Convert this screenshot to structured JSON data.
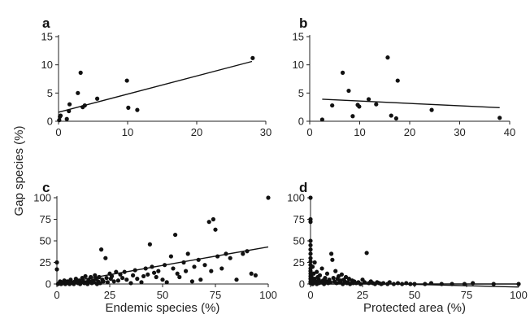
{
  "y_axis_title": "Gap species (%)",
  "chart_data": [
    {
      "panel": "a",
      "type": "scatter",
      "xlabel": "",
      "ylabel": "",
      "xlim": [
        0,
        30
      ],
      "ylim": [
        0,
        15
      ],
      "xticks": [
        0,
        10,
        20,
        30
      ],
      "yticks": [
        0,
        5,
        10,
        15
      ],
      "grid": false,
      "points": [
        [
          0.1,
          0.2
        ],
        [
          0.2,
          0.8
        ],
        [
          0.3,
          1.0
        ],
        [
          1.2,
          0.4
        ],
        [
          1.5,
          1.8
        ],
        [
          1.6,
          3.0
        ],
        [
          2.8,
          5.0
        ],
        [
          3.2,
          8.6
        ],
        [
          3.5,
          2.5
        ],
        [
          3.8,
          2.8
        ],
        [
          5.6,
          4.0
        ],
        [
          9.9,
          7.2
        ],
        [
          10.1,
          2.4
        ],
        [
          11.4,
          2.0
        ],
        [
          28.1,
          11.2
        ]
      ],
      "trend": [
        [
          0,
          1.6
        ],
        [
          28,
          10.6
        ]
      ]
    },
    {
      "panel": "b",
      "type": "scatter",
      "xlabel": "",
      "ylabel": "",
      "xlim": [
        0,
        40
      ],
      "ylim": [
        0,
        15
      ],
      "xticks": [
        0,
        10,
        20,
        30,
        40
      ],
      "yticks": [
        0,
        5,
        10,
        15
      ],
      "grid": false,
      "points": [
        [
          2.5,
          0.3
        ],
        [
          4.5,
          2.8
        ],
        [
          6.6,
          8.6
        ],
        [
          7.8,
          5.4
        ],
        [
          8.6,
          0.9
        ],
        [
          9.6,
          2.9
        ],
        [
          9.9,
          2.6
        ],
        [
          11.8,
          3.9
        ],
        [
          13.3,
          3.0
        ],
        [
          15.6,
          11.3
        ],
        [
          16.3,
          1.0
        ],
        [
          17.3,
          0.5
        ],
        [
          17.6,
          7.2
        ],
        [
          24.4,
          2.0
        ],
        [
          38.0,
          0.6
        ]
      ],
      "trend": [
        [
          2.5,
          3.9
        ],
        [
          38,
          2.4
        ]
      ]
    },
    {
      "panel": "c",
      "type": "scatter",
      "xlabel": "Endemic species (%)",
      "ylabel": "",
      "xlim": [
        0,
        100
      ],
      "ylim": [
        0,
        100
      ],
      "xticks": [
        0,
        25,
        50,
        75,
        100
      ],
      "yticks": [
        0,
        25,
        50,
        75,
        100
      ],
      "grid": false,
      "points": [
        [
          0,
          25
        ],
        [
          0,
          17
        ],
        [
          0.5,
          0
        ],
        [
          1,
          1
        ],
        [
          1.5,
          3
        ],
        [
          2,
          0
        ],
        [
          2.5,
          2
        ],
        [
          3,
          1
        ],
        [
          3.5,
          4
        ],
        [
          4,
          0
        ],
        [
          4.5,
          2
        ],
        [
          5,
          3
        ],
        [
          5.5,
          1
        ],
        [
          6,
          0
        ],
        [
          6.5,
          5
        ],
        [
          7,
          2
        ],
        [
          7.5,
          1
        ],
        [
          8,
          0
        ],
        [
          8.5,
          3
        ],
        [
          9,
          6
        ],
        [
          9.5,
          2
        ],
        [
          10,
          1
        ],
        [
          10.5,
          4
        ],
        [
          11,
          0
        ],
        [
          11.5,
          2
        ],
        [
          12,
          7
        ],
        [
          12.5,
          3
        ],
        [
          13,
          1
        ],
        [
          13.5,
          9
        ],
        [
          14,
          2
        ],
        [
          14.5,
          0
        ],
        [
          15,
          5
        ],
        [
          15.5,
          3
        ],
        [
          16,
          8
        ],
        [
          16.5,
          1
        ],
        [
          17,
          4
        ],
        [
          17.5,
          2
        ],
        [
          18,
          10
        ],
        [
          18.5,
          6
        ],
        [
          19,
          0
        ],
        [
          19.5,
          3
        ],
        [
          20,
          8
        ],
        [
          20.5,
          1
        ],
        [
          21,
          40
        ],
        [
          21.5,
          5
        ],
        [
          22,
          3
        ],
        [
          23,
          30
        ],
        [
          23.5,
          7
        ],
        [
          24,
          2
        ],
        [
          25,
          12
        ],
        [
          25.5,
          6
        ],
        [
          26,
          9
        ],
        [
          27,
          3
        ],
        [
          28,
          14
        ],
        [
          29,
          4
        ],
        [
          30,
          11
        ],
        [
          31,
          7
        ],
        [
          32,
          14
        ],
        [
          33,
          5
        ],
        [
          35,
          1
        ],
        [
          36,
          10
        ],
        [
          37,
          16
        ],
        [
          38,
          6
        ],
        [
          40,
          2
        ],
        [
          41,
          9
        ],
        [
          42,
          18
        ],
        [
          43,
          11
        ],
        [
          44,
          46
        ],
        [
          45,
          20
        ],
        [
          46,
          13
        ],
        [
          47,
          8
        ],
        [
          48,
          15
        ],
        [
          50,
          5
        ],
        [
          51,
          22
        ],
        [
          52,
          2
        ],
        [
          54,
          32
        ],
        [
          55,
          18
        ],
        [
          56,
          57
        ],
        [
          57,
          12
        ],
        [
          58,
          8
        ],
        [
          60,
          25
        ],
        [
          61,
          15
        ],
        [
          62,
          35
        ],
        [
          64,
          3
        ],
        [
          65,
          20
        ],
        [
          67,
          28
        ],
        [
          68,
          5
        ],
        [
          70,
          22
        ],
        [
          72,
          72
        ],
        [
          73,
          15
        ],
        [
          74,
          75
        ],
        [
          75,
          63
        ],
        [
          76,
          32
        ],
        [
          78,
          18
        ],
        [
          80,
          35
        ],
        [
          82,
          30
        ],
        [
          85,
          5
        ],
        [
          88,
          35
        ],
        [
          90,
          38
        ],
        [
          92,
          12
        ],
        [
          94,
          10
        ],
        [
          100,
          100
        ]
      ],
      "trend": [
        [
          0,
          0
        ],
        [
          100,
          43
        ]
      ]
    },
    {
      "panel": "d",
      "type": "scatter",
      "xlabel": "Protected area (%)",
      "ylabel": "",
      "xlim": [
        0,
        100
      ],
      "ylim": [
        0,
        100
      ],
      "xticks": [
        0,
        25,
        50,
        75,
        100
      ],
      "yticks": [
        0,
        25,
        50,
        75,
        100
      ],
      "grid": false,
      "points": [
        [
          0,
          100
        ],
        [
          0,
          75
        ],
        [
          0,
          72
        ],
        [
          0,
          50
        ],
        [
          0,
          45
        ],
        [
          0,
          40
        ],
        [
          0,
          35
        ],
        [
          0,
          30
        ],
        [
          0,
          26
        ],
        [
          0,
          22
        ],
        [
          0,
          18
        ],
        [
          0,
          15
        ],
        [
          0,
          12
        ],
        [
          0,
          9
        ],
        [
          0,
          6
        ],
        [
          0,
          3
        ],
        [
          0,
          1
        ],
        [
          0.5,
          8
        ],
        [
          0.8,
          4
        ],
        [
          1,
          20
        ],
        [
          1,
          0
        ],
        [
          1.5,
          12
        ],
        [
          1.5,
          2
        ],
        [
          2,
          25
        ],
        [
          2,
          6
        ],
        [
          2.5,
          3
        ],
        [
          3,
          14
        ],
        [
          3,
          0
        ],
        [
          3.5,
          8
        ],
        [
          4,
          5
        ],
        [
          4,
          1
        ],
        [
          4.5,
          10
        ],
        [
          5,
          2
        ],
        [
          5.5,
          18
        ],
        [
          6,
          4
        ],
        [
          6.5,
          0
        ],
        [
          7,
          7
        ],
        [
          7.5,
          3
        ],
        [
          8,
          12
        ],
        [
          8.5,
          1
        ],
        [
          9,
          5
        ],
        [
          9.5,
          2
        ],
        [
          10,
          35
        ],
        [
          10.5,
          28
        ],
        [
          11,
          7
        ],
        [
          11.5,
          3
        ],
        [
          12,
          15
        ],
        [
          12.5,
          1
        ],
        [
          13,
          6
        ],
        [
          13.5,
          9
        ],
        [
          14,
          2
        ],
        [
          14.5,
          4
        ],
        [
          15,
          11
        ],
        [
          15.5,
          0
        ],
        [
          16,
          5
        ],
        [
          16.5,
          3
        ],
        [
          17,
          8
        ],
        [
          17.5,
          1
        ],
        [
          18,
          2
        ],
        [
          18.5,
          6
        ],
        [
          19,
          0
        ],
        [
          20,
          4
        ],
        [
          20.5,
          1
        ],
        [
          21,
          3
        ],
        [
          22,
          1
        ],
        [
          23,
          2
        ],
        [
          24,
          0
        ],
        [
          25,
          5
        ],
        [
          26,
          2
        ],
        [
          27,
          36
        ],
        [
          28,
          1
        ],
        [
          29,
          3
        ],
        [
          30,
          1
        ],
        [
          31,
          0
        ],
        [
          32,
          2
        ],
        [
          33,
          1
        ],
        [
          34,
          0
        ],
        [
          35,
          1
        ],
        [
          37,
          0
        ],
        [
          38,
          2
        ],
        [
          40,
          0
        ],
        [
          42,
          1
        ],
        [
          44,
          0
        ],
        [
          46,
          1
        ],
        [
          48,
          0
        ],
        [
          50,
          0
        ],
        [
          55,
          0
        ],
        [
          58,
          1
        ],
        [
          63,
          0
        ],
        [
          68,
          0
        ],
        [
          74,
          0
        ],
        [
          78,
          1
        ],
        [
          88,
          0
        ],
        [
          100,
          0
        ]
      ],
      "trend": [
        [
          0,
          2.5
        ],
        [
          100,
          -3.5
        ]
      ],
      "reference_line": 0
    }
  ]
}
